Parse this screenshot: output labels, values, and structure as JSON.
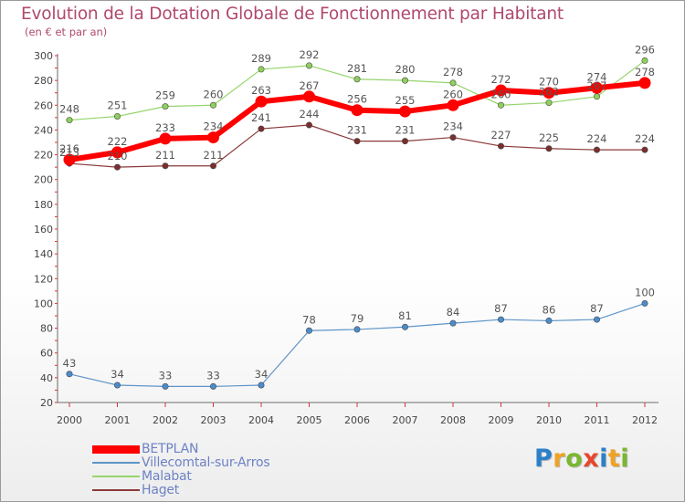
{
  "title": "Evolution de la Dotation Globale de Fonctionnement par Habitant",
  "subtitle": "(en € et par an)",
  "brand": {
    "text": "Proxiti",
    "letter_colors": [
      "#2c7fc9",
      "#f0a224",
      "#79b730",
      "#e8462c",
      "#2c7fc9",
      "#f0a224",
      "#79b730"
    ]
  },
  "chart_data": {
    "type": "line",
    "x": [
      "2000",
      "2001",
      "2002",
      "2003",
      "2004",
      "2005",
      "2006",
      "2007",
      "2008",
      "2009",
      "2010",
      "2011",
      "2012"
    ],
    "ylim": [
      20,
      300
    ],
    "yticks": [
      20,
      40,
      60,
      80,
      100,
      120,
      140,
      160,
      180,
      200,
      220,
      240,
      260,
      280,
      300
    ],
    "grid": false,
    "legend_position": "bottom-left",
    "series": [
      {
        "name": "Villecomtal-sur-Arros",
        "color": "#5e95c8",
        "marker_fill": "#4b8ccc",
        "width": 1.2,
        "values": [
          43,
          34,
          33,
          33,
          34,
          78,
          79,
          81,
          84,
          87,
          86,
          87,
          100
        ]
      },
      {
        "name": "Malabat",
        "color": "#95d56c",
        "marker_fill": "#8ed05a",
        "width": 1.2,
        "values": [
          248,
          251,
          259,
          260,
          289,
          292,
          281,
          280,
          278,
          260,
          262,
          267,
          296
        ]
      },
      {
        "name": "Haget",
        "color": "#8b3a3a",
        "marker_fill": "#7a2e2e",
        "width": 1.2,
        "values": [
          213,
          210,
          211,
          211,
          241,
          244,
          231,
          231,
          234,
          227,
          225,
          224,
          224
        ]
      },
      {
        "name": "BETPLAN",
        "color": "#ff0000",
        "marker_fill": "#ff0000",
        "width": 6,
        "values": [
          216,
          222,
          233,
          234,
          263,
          267,
          256,
          255,
          260,
          272,
          270,
          274,
          278
        ]
      }
    ],
    "legend_order": [
      "BETPLAN",
      "Villecomtal-sur-Arros",
      "Malabat",
      "Haget"
    ]
  }
}
